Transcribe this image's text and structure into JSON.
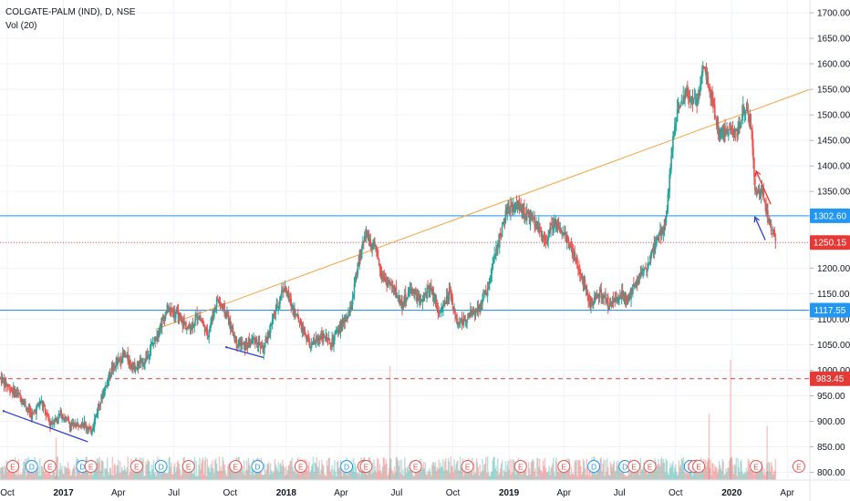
{
  "header": {
    "symbol": "COLGATE-PALM (IND), D, NSE",
    "indicator": "Vol (20)"
  },
  "colors": {
    "up": "#26a69a",
    "down": "#ef5350",
    "trendline_orange": "#f7a440",
    "hline_blue": "#2196f3",
    "hline_red_dotted": "#ef5350",
    "hline_red_dashed": "#e53935",
    "divergence_blue": "#3040d0",
    "divergence_red": "#e53935",
    "badge_blue": "#2196f3",
    "badge_red": "#e53935",
    "event_red": "#ef5350",
    "event_blue": "#2196f3"
  },
  "chart_data": {
    "type": "candlestick",
    "title": "COLGATE-PALM (IND), D, NSE",
    "indicator": "Vol (20)",
    "x_range": [
      "2016-10-01",
      "2020-05-20"
    ],
    "y_range": [
      785,
      1725
    ],
    "price_ticks": [
      "1700.00",
      "1650.00",
      "1600.00",
      "1550.00",
      "1500.00",
      "1450.00",
      "1400.00",
      "1350.00",
      "1300.00",
      "1250.00",
      "1200.00",
      "1150.00",
      "1100.00",
      "1050.00",
      "1000.00",
      "950.00",
      "900.00",
      "850.00",
      "800.00"
    ],
    "time_ticks": [
      "Oct",
      "2017",
      "Apr",
      "Jul",
      "Oct",
      "2018",
      "Apr",
      "Jul",
      "Oct",
      "2019",
      "Apr",
      "Jul",
      "Oct",
      "2020",
      "Apr"
    ],
    "time_tick_dates": [
      "2016-10-01",
      "2017-01-01",
      "2017-04-01",
      "2017-07-01",
      "2017-10-01",
      "2018-01-01",
      "2018-04-01",
      "2018-07-01",
      "2018-10-01",
      "2019-01-01",
      "2019-04-01",
      "2019-07-01",
      "2019-10-01",
      "2020-01-01",
      "2020-04-01"
    ],
    "price_path": [
      [
        "2016-09-20",
        985
      ],
      [
        "2016-10-10",
        960
      ],
      [
        "2016-10-25",
        945
      ],
      [
        "2016-11-10",
        910
      ],
      [
        "2016-11-25",
        940
      ],
      [
        "2016-12-10",
        895
      ],
      [
        "2016-12-28",
        915
      ],
      [
        "2017-01-15",
        890
      ],
      [
        "2017-02-01",
        900
      ],
      [
        "2017-02-15",
        880
      ],
      [
        "2017-03-01",
        935
      ],
      [
        "2017-03-20",
        1000
      ],
      [
        "2017-04-10",
        1030
      ],
      [
        "2017-04-28",
        1005
      ],
      [
        "2017-05-15",
        1020
      ],
      [
        "2017-06-01",
        1065
      ],
      [
        "2017-06-20",
        1120
      ],
      [
        "2017-07-05",
        1110
      ],
      [
        "2017-07-25",
        1080
      ],
      [
        "2017-08-10",
        1110
      ],
      [
        "2017-08-25",
        1070
      ],
      [
        "2017-09-10",
        1140
      ],
      [
        "2017-09-25",
        1110
      ],
      [
        "2017-10-10",
        1060
      ],
      [
        "2017-10-25",
        1045
      ],
      [
        "2017-11-10",
        1060
      ],
      [
        "2017-11-25",
        1040
      ],
      [
        "2017-12-10",
        1100
      ],
      [
        "2017-12-28",
        1165
      ],
      [
        "2018-01-10",
        1125
      ],
      [
        "2018-01-25",
        1090
      ],
      [
        "2018-02-10",
        1045
      ],
      [
        "2018-02-28",
        1070
      ],
      [
        "2018-03-15",
        1050
      ],
      [
        "2018-03-31",
        1085
      ],
      [
        "2018-04-15",
        1110
      ],
      [
        "2018-04-28",
        1200
      ],
      [
        "2018-05-10",
        1270
      ],
      [
        "2018-05-25",
        1240
      ],
      [
        "2018-06-10",
        1180
      ],
      [
        "2018-06-25",
        1160
      ],
      [
        "2018-07-10",
        1130
      ],
      [
        "2018-07-25",
        1160
      ],
      [
        "2018-08-10",
        1130
      ],
      [
        "2018-08-25",
        1165
      ],
      [
        "2018-09-10",
        1110
      ],
      [
        "2018-09-25",
        1150
      ],
      [
        "2018-10-10",
        1090
      ],
      [
        "2018-10-25",
        1105
      ],
      [
        "2018-11-10",
        1120
      ],
      [
        "2018-11-28",
        1160
      ],
      [
        "2018-12-10",
        1230
      ],
      [
        "2018-12-28",
        1310
      ],
      [
        "2019-01-15",
        1325
      ],
      [
        "2019-02-01",
        1300
      ],
      [
        "2019-02-15",
        1285
      ],
      [
        "2019-03-01",
        1250
      ],
      [
        "2019-03-15",
        1290
      ],
      [
        "2019-04-01",
        1270
      ],
      [
        "2019-04-15",
        1230
      ],
      [
        "2019-05-01",
        1180
      ],
      [
        "2019-05-15",
        1130
      ],
      [
        "2019-06-01",
        1150
      ],
      [
        "2019-06-15",
        1125
      ],
      [
        "2019-07-01",
        1150
      ],
      [
        "2019-07-15",
        1140
      ],
      [
        "2019-08-01",
        1180
      ],
      [
        "2019-08-15",
        1200
      ],
      [
        "2019-09-01",
        1260
      ],
      [
        "2019-09-15",
        1290
      ],
      [
        "2019-09-25",
        1440
      ],
      [
        "2019-10-05",
        1510
      ],
      [
        "2019-10-20",
        1545
      ],
      [
        "2019-11-05",
        1520
      ],
      [
        "2019-11-15",
        1600
      ],
      [
        "2019-11-28",
        1545
      ],
      [
        "2019-12-10",
        1465
      ],
      [
        "2019-12-25",
        1470
      ],
      [
        "2020-01-10",
        1460
      ],
      [
        "2020-01-20",
        1510
      ],
      [
        "2020-02-01",
        1490
      ],
      [
        "2020-02-08",
        1350
      ],
      [
        "2020-02-18",
        1355
      ],
      [
        "2020-02-28",
        1300
      ],
      [
        "2020-03-06",
        1275
      ],
      [
        "2020-03-13",
        1250
      ]
    ],
    "volume_spikes": [
      {
        "date": "2018-06-20",
        "volume_frac": 0.95
      },
      {
        "date": "2019-12-30",
        "volume_frac": 1.0
      },
      {
        "date": "2019-11-25",
        "volume_frac": 0.55
      },
      {
        "date": "2020-02-28",
        "volume_frac": 0.45
      },
      {
        "date": "2016-12-20",
        "volume_frac": 0.35
      }
    ],
    "horizontal_lines": [
      {
        "price": 1302.6,
        "label": "1302.60",
        "style": "solid",
        "color": "blue"
      },
      {
        "price": 1250.15,
        "label": "1250.15",
        "style": "dotted",
        "color": "red"
      },
      {
        "price": 1117.55,
        "label": "1117.55",
        "style": "solid",
        "color": "blue"
      },
      {
        "price": 983.45,
        "label": "983.45",
        "style": "dashed",
        "color": "red"
      }
    ],
    "trendline": {
      "from": [
        "2017-06-01",
        1080
      ],
      "to": [
        "2020-05-20",
        1550
      ],
      "color": "orange"
    },
    "drawings": [
      {
        "from": [
          "2016-09-25",
          920
        ],
        "to": [
          "2017-02-10",
          860
        ],
        "color": "blue"
      },
      {
        "from": [
          "2017-09-25",
          1045
        ],
        "to": [
          "2017-11-25",
          1025
        ],
        "color": "blue"
      },
      {
        "from": [
          "2020-02-08",
          1300
        ],
        "to": [
          "2020-02-25",
          1255
        ],
        "color": "blue",
        "arrow": "start"
      },
      {
        "from": [
          "2020-02-10",
          1390
        ],
        "to": [
          "2020-03-05",
          1325
        ],
        "color": "red",
        "arrow": "start"
      }
    ],
    "events": [
      {
        "date": "2016-10-10",
        "type": "E"
      },
      {
        "date": "2016-11-10",
        "type": "D"
      },
      {
        "date": "2016-12-10",
        "type": "E"
      },
      {
        "date": "2017-02-01",
        "type": "D"
      },
      {
        "date": "2017-02-15",
        "type": "E"
      },
      {
        "date": "2017-05-01",
        "type": "E"
      },
      {
        "date": "2017-06-10",
        "type": "D"
      },
      {
        "date": "2017-07-25",
        "type": "E"
      },
      {
        "date": "2017-10-10",
        "type": "E"
      },
      {
        "date": "2017-11-15",
        "type": "D"
      },
      {
        "date": "2018-01-25",
        "type": "E"
      },
      {
        "date": "2018-04-10",
        "type": "D"
      },
      {
        "date": "2018-05-08",
        "type": "E"
      },
      {
        "date": "2018-05-12",
        "type": "E"
      },
      {
        "date": "2018-08-01",
        "type": "E"
      },
      {
        "date": "2018-10-25",
        "type": "E"
      },
      {
        "date": "2019-01-20",
        "type": "E"
      },
      {
        "date": "2019-04-01",
        "type": "E"
      },
      {
        "date": "2019-05-20",
        "type": "D"
      },
      {
        "date": "2019-07-10",
        "type": "D"
      },
      {
        "date": "2019-07-25",
        "type": "E"
      },
      {
        "date": "2019-08-20",
        "type": "E"
      },
      {
        "date": "2019-10-25",
        "type": "D"
      },
      {
        "date": "2019-11-01",
        "type": "E"
      },
      {
        "date": "2019-11-08",
        "type": "E"
      },
      {
        "date": "2020-02-10",
        "type": "E"
      },
      {
        "date": "2020-04-20",
        "type": "E"
      }
    ]
  }
}
